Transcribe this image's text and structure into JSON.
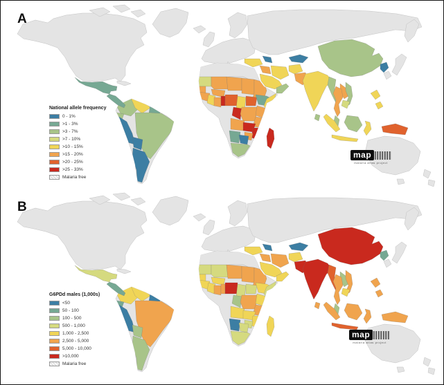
{
  "panels": [
    {
      "id": "a",
      "label": "A",
      "legend": {
        "title": "National allele frequency",
        "items": [
          {
            "label": "0 - 1%",
            "swatch": 0
          },
          {
            "label": ">1 - 3%",
            "swatch": 1
          },
          {
            "label": ">3 - 7%",
            "swatch": 2
          },
          {
            "label": ">7 - 10%",
            "swatch": 3
          },
          {
            "label": ">10 - 15%",
            "swatch": 4
          },
          {
            "label": ">15 - 20%",
            "swatch": 5
          },
          {
            "label": ">20 - 25%",
            "swatch": 6
          },
          {
            "label": ">25 - 33%",
            "swatch": 7
          },
          {
            "label": "Malaria free",
            "swatch": "hatch"
          }
        ]
      },
      "regions": {
        "mexico": 1,
        "central_america": 1,
        "colombia": 2,
        "venezuela": 4,
        "guyanas": 1,
        "ecuador": 2,
        "brazil": 2,
        "peru": 0,
        "bolivia": 0,
        "argentina": 0,
        "n_africa": "free",
        "mauritania": 3,
        "senegal": 5,
        "mali": 5,
        "burkina": 5,
        "guinea": 5,
        "ivory_coast": 4,
        "ghana": 5,
        "benin_togo": 7,
        "niger": 5,
        "nigeria": 6,
        "chad": 5,
        "sudan": 5,
        "cameroon": 4,
        "car": 6,
        "ethiopia": 1,
        "somalia": 4,
        "congo_gabon": 7,
        "drc": 5,
        "kenya": 5,
        "tanzania": 5,
        "angola": 5,
        "zambia": 7,
        "zimbabwe": 5,
        "mozambique": 7,
        "namibia": 1,
        "botswana": 0,
        "south_africa": 2,
        "madagascar": 7,
        "turkey": 4,
        "caucasus": 0,
        "iraq": 5,
        "iran": 4,
        "saudi": 4,
        "yemen_oman": 2,
        "central_asia": 0,
        "afghanistan": 4,
        "pakistan": 5,
        "india": 4,
        "sri_lanka": 2,
        "china": 2,
        "north_korea": 0,
        "myanmar": 2,
        "thailand": 5,
        "laos": 5,
        "vietnam": 2,
        "cambodia": 3,
        "malaysia": 2,
        "sumatra": 4,
        "borneo": 2,
        "java": 4,
        "sulawesi": 4,
        "philippines": 4,
        "new_guinea": 6
      }
    },
    {
      "id": "b",
      "label": "B",
      "legend": {
        "title": "G6PDd males (1,000s)",
        "items": [
          {
            "label": "<50",
            "swatch": 0
          },
          {
            "label": "50 - 100",
            "swatch": 1
          },
          {
            "label": "100 - 500",
            "swatch": 2
          },
          {
            "label": "500 - 1,000",
            "swatch": 3
          },
          {
            "label": "1,000 - 2,500",
            "swatch": 4
          },
          {
            "label": "2,500 - 5,000",
            "swatch": 5
          },
          {
            "label": "5,000 - 10,000",
            "swatch": 6
          },
          {
            "label": ">10,000",
            "swatch": 7
          },
          {
            "label": "Malaria free",
            "swatch": "hatch"
          }
        ]
      },
      "regions": {
        "mexico": 3,
        "central_america": 1,
        "colombia": 4,
        "venezuela": 4,
        "guyanas": 0,
        "ecuador": 1,
        "brazil": 5,
        "peru": 0,
        "bolivia": 2,
        "argentina": 2,
        "n_africa": "free",
        "mauritania": 3,
        "senegal": 4,
        "mali": 3,
        "burkina": 4,
        "guinea": 4,
        "ivory_coast": 4,
        "ghana": 5,
        "benin_togo": 5,
        "niger": 5,
        "nigeria": 7,
        "chad": 5,
        "sudan": 5,
        "cameroon": 3,
        "car": 3,
        "ethiopia": 4,
        "somalia": 3,
        "congo_gabon": 2,
        "drc": 5,
        "kenya": 4,
        "tanzania": 5,
        "angola": 4,
        "zambia": 4,
        "zimbabwe": 3,
        "mozambique": 4,
        "namibia": 0,
        "botswana": 3,
        "south_africa": 3,
        "madagascar": 4,
        "turkey": 4,
        "caucasus": 0,
        "iraq": 5,
        "iran": 5,
        "saudi": 4,
        "yemen_oman": 4,
        "central_asia": 0,
        "afghanistan": 4,
        "pakistan": 7,
        "india": 7,
        "sri_lanka": 5,
        "china": 7,
        "north_korea": 1,
        "myanmar": 6,
        "thailand": 5,
        "laos": 2,
        "vietnam": 5,
        "cambodia": 4,
        "malaysia": 2,
        "sumatra": 5,
        "borneo": 5,
        "java": 6,
        "sulawesi": 5,
        "philippines": 5,
        "new_guinea": 5
      }
    }
  ],
  "logo": {
    "text": "map",
    "subtext": "malaria atlas project"
  },
  "colors": {
    "classes": [
      "#3c7ea3",
      "#76a893",
      "#a8c489",
      "#d5da7f",
      "#f0d557",
      "#f0a44e",
      "#e0622d",
      "#c9291e"
    ],
    "free_land": "#e4e4e4",
    "land_border": "#c2c2c2",
    "ocean": "#ffffff",
    "hatch_light": "#f6f6f6",
    "hatch_dark": "#d7d7d7"
  }
}
